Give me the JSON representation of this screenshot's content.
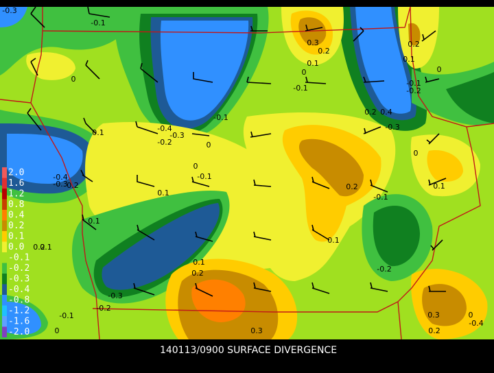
{
  "title": "140113/0900 SURFACE DIVERGENCE",
  "colorbar": {
    "labels": [
      "2.0",
      "1.6",
      "1.2",
      "0.8",
      "0.4",
      "0.2",
      "0.1",
      "0.0",
      "-0.1",
      "-0.2",
      "-0.3",
      "-0.4",
      "-0.8",
      "-1.2",
      "-1.6",
      "-2.0"
    ],
    "colors": [
      "#f05a5a",
      "#e03030",
      "#b80000",
      "#c84000",
      "#ff8000",
      "#c88c00",
      "#ffcc00",
      "#f0f030",
      "#a0e020",
      "#40c040",
      "#108020",
      "#1e5a96",
      "#3090ff",
      "#20c0ff",
      "#60a0ff",
      "#8040c0"
    ]
  },
  "contour_labels": [
    "-0.3",
    "-0.1",
    "0.3",
    "0.2",
    "0.1",
    "0",
    "-0.1",
    "0.2",
    "0.1",
    "0",
    "-0.1",
    "-0.2",
    "0",
    "-0.1",
    "0.2",
    "0.4",
    "-0.3",
    "-0.4",
    "-0.2",
    "-0.3",
    "0",
    "0.1",
    "0",
    "0",
    "-0.1",
    "-0.4",
    "-0.3",
    "0.2",
    "0.1",
    "0.2",
    "-0.1",
    "0.1",
    "0.1",
    "0.1",
    "0.2",
    "0.1",
    "0.1",
    "0.2",
    "-0.2",
    "-0.3",
    "-0.2",
    "-0.1",
    "0",
    "0.3",
    "0.3",
    "0.2",
    "0",
    "-0.4"
  ]
}
